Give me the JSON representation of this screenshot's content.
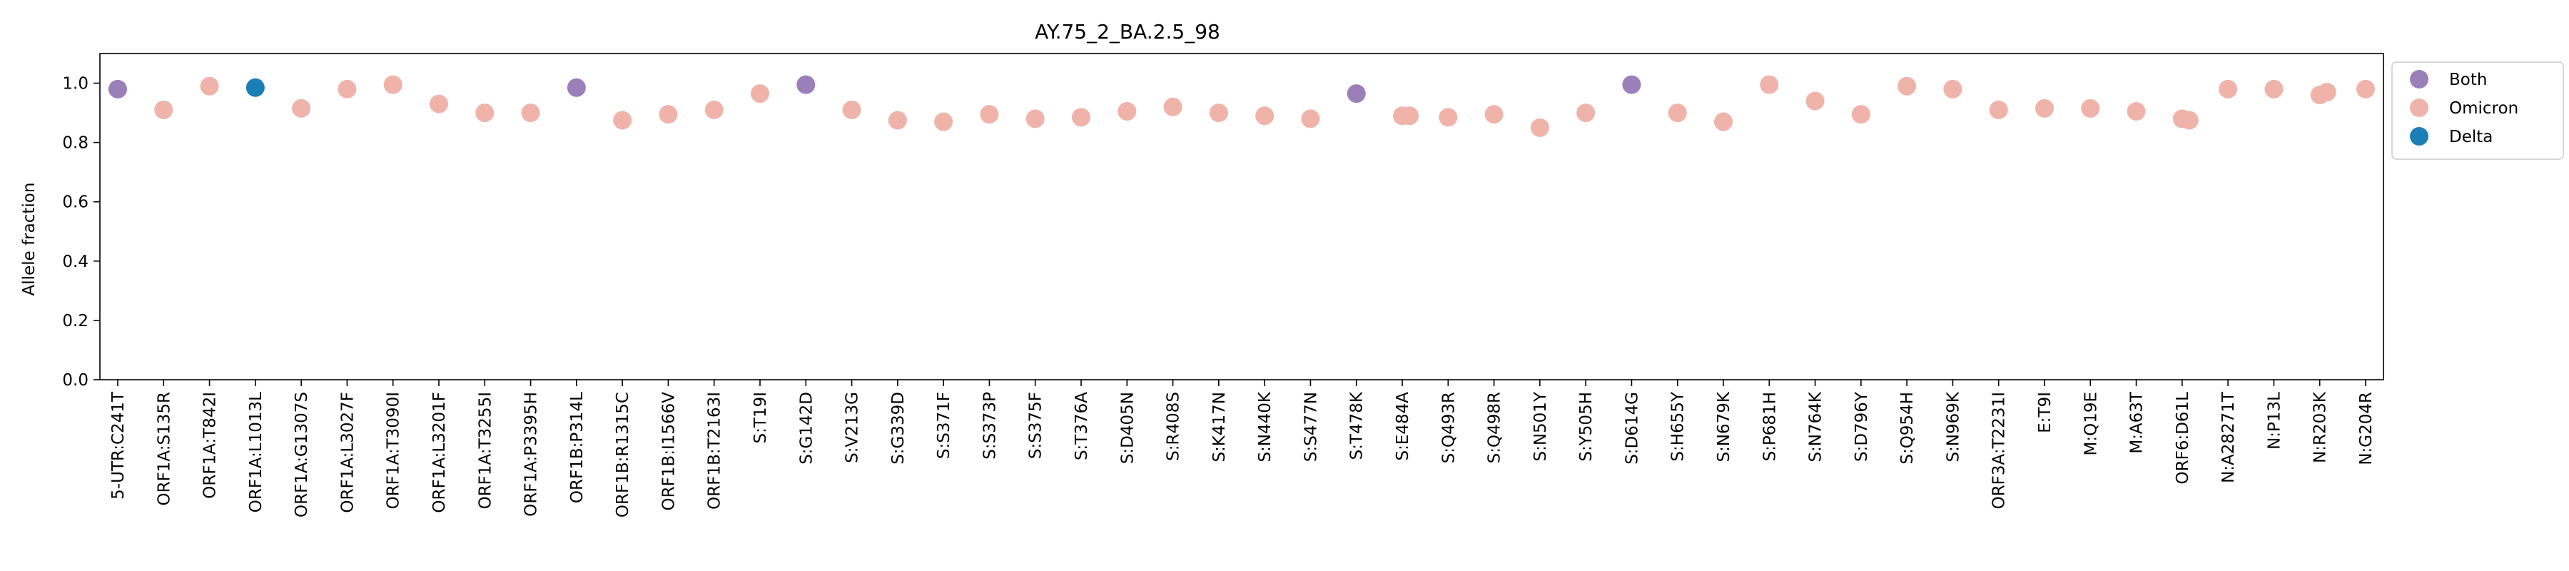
{
  "chart_data": {
    "type": "scatter",
    "title": "AY.75_2_BA.2.5_98",
    "xlabel": "",
    "ylabel": "Allele fraction",
    "ylim": [
      0,
      1.1
    ],
    "yticks": [
      "0.0",
      "0.2",
      "0.4",
      "0.6",
      "0.8",
      "1.0"
    ],
    "grid": false,
    "legend_position": "outside-top-right",
    "colors": {
      "Both": "#9b7fb8",
      "Omicron": "#efb3aa",
      "Delta": "#1a7fb5"
    },
    "categories": [
      "5-UTR:C241T",
      "ORF1A:S135R",
      "ORF1A:T842I",
      "ORF1A:L1013L",
      "ORF1A:G1307S",
      "ORF1A:L3027F",
      "ORF1A:T3090I",
      "ORF1A:L3201F",
      "ORF1A:T3255I",
      "ORF1A:P3395H",
      "ORF1B:P314L",
      "ORF1B:R1315C",
      "ORF1B:I1566V",
      "ORF1B:T2163I",
      "S:T19I",
      "S:G142D",
      "S:V213G",
      "S:G339D",
      "S:S371F",
      "S:S373P",
      "S:S375F",
      "S:T376A",
      "S:D405N",
      "S:R408S",
      "S:K417N",
      "S:N440K",
      "S:S477N",
      "S:T478K",
      "S:E484A",
      "S:Q493R",
      "S:Q498R",
      "S:N501Y",
      "S:Y505H",
      "S:D614G",
      "S:H655Y",
      "S:N679K",
      "S:P681H",
      "S:N764K",
      "S:D796Y",
      "S:Q954H",
      "S:N969K",
      "ORF3A:T2231I",
      "E:T9I",
      "M:Q19E",
      "M:A63T",
      "ORF6:D61L",
      "N:A28271T",
      "N:P13L",
      "N:R203K",
      "N:G204R"
    ],
    "series": [
      {
        "name": "Both",
        "points": [
          {
            "x": "5-UTR:C241T",
            "y": 0.98
          },
          {
            "x": "ORF1B:P314L",
            "y": 0.985
          },
          {
            "x": "S:G142D",
            "y": 0.995
          },
          {
            "x": "S:T478K",
            "y": 0.965
          },
          {
            "x": "S:D614G",
            "y": 0.995
          }
        ]
      },
      {
        "name": "Omicron",
        "points": [
          {
            "x": "ORF1A:S135R",
            "y": 0.91
          },
          {
            "x": "ORF1A:T842I",
            "y": 0.99
          },
          {
            "x": "ORF1A:G1307S",
            "y": 0.915
          },
          {
            "x": "ORF1A:L3027F",
            "y": 0.98
          },
          {
            "x": "ORF1A:T3090I",
            "y": 0.995
          },
          {
            "x": "ORF1A:L3201F",
            "y": 0.93
          },
          {
            "x": "ORF1A:T3255I",
            "y": 0.9
          },
          {
            "x": "ORF1A:P3395H",
            "y": 0.9
          },
          {
            "x": "ORF1B:R1315C",
            "y": 0.875
          },
          {
            "x": "ORF1B:I1566V",
            "y": 0.895
          },
          {
            "x": "ORF1B:T2163I",
            "y": 0.91
          },
          {
            "x": "S:T19I",
            "y": 0.965
          },
          {
            "x": "S:V213G",
            "y": 0.91
          },
          {
            "x": "S:G339D",
            "y": 0.875
          },
          {
            "x": "S:S371F",
            "y": 0.87
          },
          {
            "x": "S:S373P",
            "y": 0.895
          },
          {
            "x": "S:S375F",
            "y": 0.88
          },
          {
            "x": "S:T376A",
            "y": 0.885
          },
          {
            "x": "S:D405N",
            "y": 0.905
          },
          {
            "x": "S:R408S",
            "y": 0.92
          },
          {
            "x": "S:K417N",
            "y": 0.9
          },
          {
            "x": "S:N440K",
            "y": 0.89
          },
          {
            "x": "S:S477N",
            "y": 0.88
          },
          {
            "x": "S:E484A",
            "y": 0.89
          },
          {
            "x": "S:E484A",
            "y": 0.89
          },
          {
            "x": "S:Q493R",
            "y": 0.885
          },
          {
            "x": "S:Q498R",
            "y": 0.895
          },
          {
            "x": "S:N501Y",
            "y": 0.85
          },
          {
            "x": "S:Y505H",
            "y": 0.9
          },
          {
            "x": "S:H655Y",
            "y": 0.9
          },
          {
            "x": "S:N679K",
            "y": 0.87
          },
          {
            "x": "S:P681H",
            "y": 0.995
          },
          {
            "x": "S:N764K",
            "y": 0.94
          },
          {
            "x": "S:D796Y",
            "y": 0.895
          },
          {
            "x": "S:Q954H",
            "y": 0.99
          },
          {
            "x": "S:N969K",
            "y": 0.98
          },
          {
            "x": "ORF3A:T2231I",
            "y": 0.91
          },
          {
            "x": "E:T9I",
            "y": 0.915
          },
          {
            "x": "M:Q19E",
            "y": 0.915
          },
          {
            "x": "M:A63T",
            "y": 0.905
          },
          {
            "x": "ORF6:D61L",
            "y": 0.88
          },
          {
            "x": "ORF6:D61L",
            "y": 0.875
          },
          {
            "x": "N:A28271T",
            "y": 0.98
          },
          {
            "x": "N:P13L",
            "y": 0.98
          },
          {
            "x": "N:R203K",
            "y": 0.96
          },
          {
            "x": "N:R203K",
            "y": 0.97
          },
          {
            "x": "N:G204R",
            "y": 0.98
          }
        ]
      },
      {
        "name": "Delta",
        "points": [
          {
            "x": "ORF1A:L1013L",
            "y": 0.985
          }
        ]
      }
    ]
  }
}
